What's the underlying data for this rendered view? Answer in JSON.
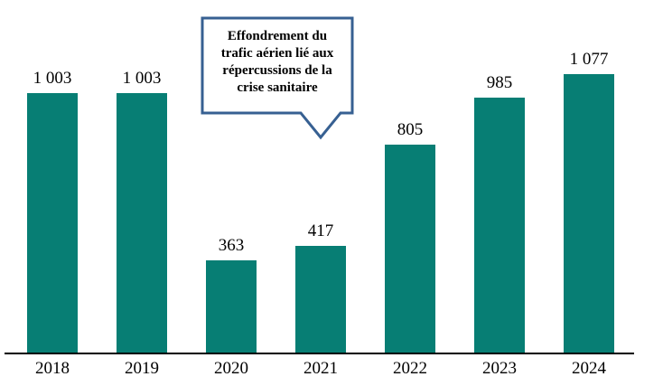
{
  "chart_data": {
    "type": "bar",
    "title": "",
    "xlabel": "",
    "ylabel": "",
    "categories": [
      "2018",
      "2019",
      "2020",
      "2021",
      "2022",
      "2023",
      "2024"
    ],
    "values": [
      1003,
      1003,
      363,
      417,
      805,
      985,
      1077
    ],
    "value_labels": [
      "1 003",
      "1 003",
      "363",
      "417",
      "805",
      "985",
      "1 077"
    ],
    "ylim": [
      0,
      1100
    ],
    "grid": false,
    "legend_position": "none",
    "bar_color": "#077E74",
    "axis_color": "#000000",
    "label_color": "#000000",
    "callout": {
      "text": "Effondrement du trafic aérien lié aux répercussions de la crise sanitaire",
      "lines": [
        "Effondrement du",
        "trafic aérien lié aux",
        "répercussions de la",
        "crise sanitaire"
      ],
      "border_color": "#376092",
      "fill_color": "#FFFFFF"
    }
  }
}
